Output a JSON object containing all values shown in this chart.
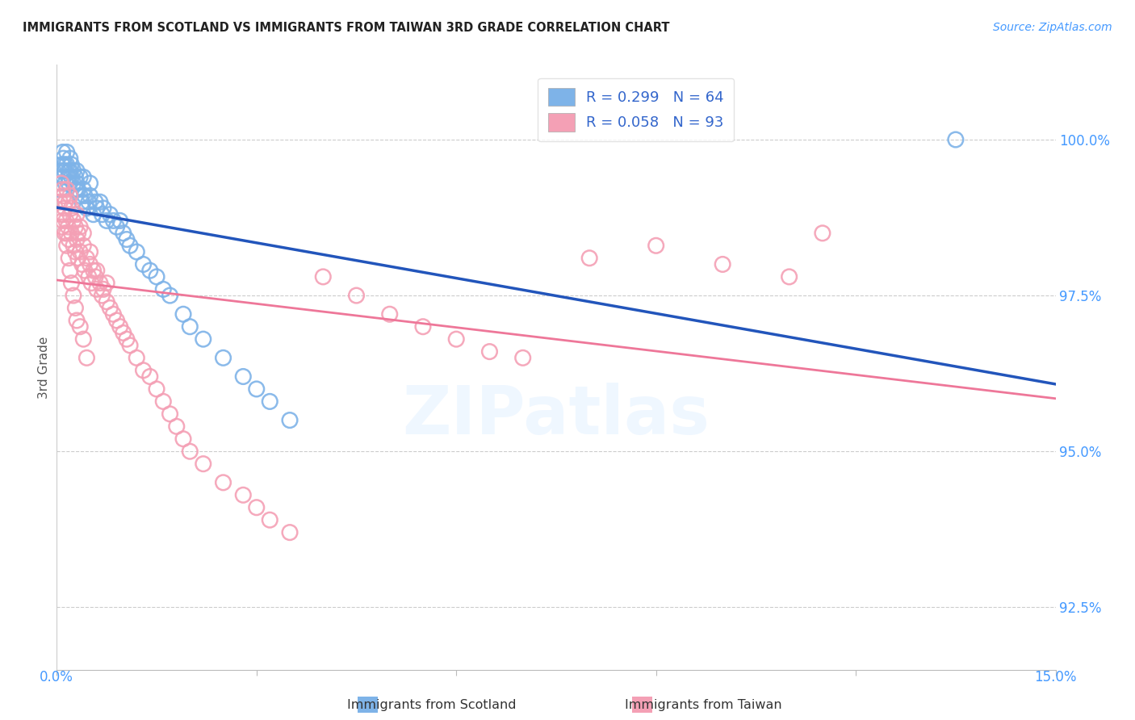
{
  "title": "IMMIGRANTS FROM SCOTLAND VS IMMIGRANTS FROM TAIWAN 3RD GRADE CORRELATION CHART",
  "source": "Source: ZipAtlas.com",
  "ylabel": "3rd Grade",
  "ylabel_right": [
    "100.0%",
    "97.5%",
    "95.0%",
    "92.5%"
  ],
  "ylabel_right_vals": [
    100.0,
    97.5,
    95.0,
    92.5
  ],
  "xlim": [
    0.0,
    15.0
  ],
  "ylim": [
    91.5,
    101.2
  ],
  "R_scotland": 0.299,
  "N_scotland": 64,
  "R_taiwan": 0.058,
  "N_taiwan": 93,
  "color_scotland": "#7EB3E8",
  "color_taiwan": "#F4A0B5",
  "color_line_scotland": "#2255BB",
  "color_line_taiwan": "#EE7799",
  "color_title": "#222222",
  "color_source": "#4499FF",
  "color_axis_labels": "#4499FF",
  "color_ylabel": "#555555",
  "background": "#FFFFFF",
  "scatter_scotland_x": [
    0.05,
    0.07,
    0.08,
    0.09,
    0.1,
    0.1,
    0.12,
    0.12,
    0.13,
    0.15,
    0.15,
    0.17,
    0.18,
    0.18,
    0.2,
    0.2,
    0.22,
    0.22,
    0.25,
    0.25,
    0.28,
    0.28,
    0.3,
    0.3,
    0.32,
    0.35,
    0.35,
    0.38,
    0.4,
    0.4,
    0.42,
    0.45,
    0.48,
    0.5,
    0.5,
    0.55,
    0.58,
    0.6,
    0.65,
    0.68,
    0.7,
    0.75,
    0.8,
    0.85,
    0.9,
    0.95,
    1.0,
    1.05,
    1.1,
    1.2,
    1.3,
    1.4,
    1.5,
    1.6,
    1.7,
    1.9,
    2.0,
    2.2,
    2.5,
    2.8,
    3.0,
    3.2,
    3.5,
    13.5
  ],
  "scatter_scotland_y": [
    99.2,
    99.5,
    99.6,
    99.8,
    99.4,
    99.7,
    99.5,
    99.6,
    99.3,
    99.6,
    99.8,
    99.4,
    99.5,
    99.3,
    99.5,
    99.7,
    99.4,
    99.6,
    99.3,
    99.5,
    99.2,
    99.4,
    99.5,
    99.3,
    99.2,
    99.1,
    99.4,
    99.0,
    99.2,
    99.4,
    99.1,
    98.9,
    99.0,
    99.1,
    99.3,
    98.8,
    99.0,
    98.9,
    99.0,
    98.8,
    98.9,
    98.7,
    98.8,
    98.7,
    98.6,
    98.7,
    98.5,
    98.4,
    98.3,
    98.2,
    98.0,
    97.9,
    97.8,
    97.6,
    97.5,
    97.2,
    97.0,
    96.8,
    96.5,
    96.2,
    96.0,
    95.8,
    95.5,
    100.0
  ],
  "scatter_taiwan_x": [
    0.05,
    0.07,
    0.08,
    0.09,
    0.1,
    0.12,
    0.13,
    0.14,
    0.15,
    0.15,
    0.17,
    0.18,
    0.18,
    0.2,
    0.2,
    0.22,
    0.22,
    0.25,
    0.25,
    0.28,
    0.28,
    0.3,
    0.3,
    0.32,
    0.32,
    0.35,
    0.35,
    0.38,
    0.4,
    0.4,
    0.42,
    0.45,
    0.48,
    0.5,
    0.5,
    0.52,
    0.55,
    0.58,
    0.6,
    0.6,
    0.65,
    0.68,
    0.7,
    0.75,
    0.75,
    0.8,
    0.85,
    0.9,
    0.95,
    1.0,
    1.05,
    1.1,
    1.2,
    1.3,
    1.4,
    1.5,
    1.6,
    1.7,
    1.8,
    1.9,
    2.0,
    2.2,
    2.5,
    2.8,
    3.0,
    3.2,
    3.5,
    4.0,
    4.5,
    5.0,
    5.5,
    6.0,
    6.5,
    7.0,
    8.0,
    9.0,
    10.0,
    11.0,
    11.5,
    0.08,
    0.09,
    0.1,
    0.12,
    0.15,
    0.18,
    0.2,
    0.22,
    0.25,
    0.28,
    0.3,
    0.35,
    0.4,
    0.45
  ],
  "scatter_taiwan_y": [
    99.0,
    99.3,
    98.8,
    99.2,
    99.1,
    98.9,
    99.0,
    98.7,
    99.2,
    98.5,
    98.6,
    99.0,
    98.4,
    98.8,
    99.1,
    98.5,
    98.9,
    98.3,
    98.7,
    98.2,
    98.6,
    98.4,
    98.8,
    98.1,
    98.5,
    98.2,
    98.6,
    98.0,
    98.3,
    98.5,
    97.9,
    98.1,
    97.8,
    98.0,
    98.2,
    97.7,
    97.9,
    97.8,
    97.6,
    97.9,
    97.7,
    97.5,
    97.6,
    97.4,
    97.7,
    97.3,
    97.2,
    97.1,
    97.0,
    96.9,
    96.8,
    96.7,
    96.5,
    96.3,
    96.2,
    96.0,
    95.8,
    95.6,
    95.4,
    95.2,
    95.0,
    94.8,
    94.5,
    94.3,
    94.1,
    93.9,
    93.7,
    97.8,
    97.5,
    97.2,
    97.0,
    96.8,
    96.6,
    96.5,
    98.1,
    98.3,
    98.0,
    97.8,
    98.5,
    98.6,
    98.7,
    98.8,
    98.5,
    98.3,
    98.1,
    97.9,
    97.7,
    97.5,
    97.3,
    97.1,
    97.0,
    96.8,
    96.5
  ]
}
